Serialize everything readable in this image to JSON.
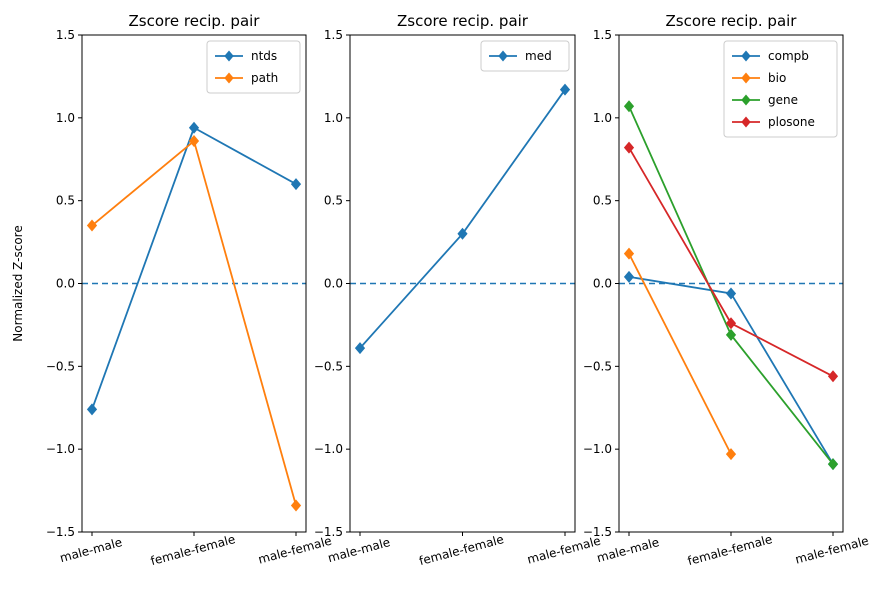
{
  "chart_data": [
    {
      "type": "line",
      "title": "Zscore recip. pair",
      "ylabel": "Normalized Z-score",
      "categories": [
        "male-male",
        "female-female",
        "male-female"
      ],
      "ylim": [
        -1.5,
        1.5
      ],
      "yticks": [
        "−1.5",
        "−1.0",
        "−0.5",
        "0.0",
        "0.5",
        "1.0",
        "1.5"
      ],
      "yticks_values": [
        -1.5,
        -1.0,
        -0.5,
        0.0,
        0.5,
        1.0,
        1.5
      ],
      "reference_line": 0,
      "legend_position": "top-right",
      "series": [
        {
          "name": "ntds",
          "color": "#1f77b4",
          "values": [
            -0.76,
            0.94,
            0.6
          ]
        },
        {
          "name": "path",
          "color": "#ff7f0e",
          "values": [
            0.35,
            0.86,
            -1.34
          ]
        }
      ]
    },
    {
      "type": "line",
      "title": "Zscore recip. pair",
      "categories": [
        "male-male",
        "female-female",
        "male-female"
      ],
      "ylim": [
        -1.5,
        1.5
      ],
      "yticks": [
        "−1.5",
        "−1.0",
        "−0.5",
        "0.0",
        "0.5",
        "1.0",
        "1.5"
      ],
      "yticks_values": [
        -1.5,
        -1.0,
        -0.5,
        0.0,
        0.5,
        1.0,
        1.5
      ],
      "reference_line": 0,
      "legend_position": "top-right",
      "series": [
        {
          "name": "med",
          "color": "#1f77b4",
          "values": [
            -0.39,
            0.3,
            1.17
          ]
        }
      ]
    },
    {
      "type": "line",
      "title": "Zscore recip. pair",
      "categories": [
        "male-male",
        "female-female",
        "male-female"
      ],
      "ylim": [
        -1.5,
        1.5
      ],
      "yticks": [
        "−1.5",
        "−1.0",
        "−0.5",
        "0.0",
        "0.5",
        "1.0",
        "1.5"
      ],
      "yticks_values": [
        -1.5,
        -1.0,
        -0.5,
        0.0,
        0.5,
        1.0,
        1.5
      ],
      "reference_line": 0,
      "legend_position": "top-right",
      "series": [
        {
          "name": "compb",
          "color": "#1f77b4",
          "values": [
            0.04,
            -0.06,
            -1.09
          ]
        },
        {
          "name": "bio",
          "color": "#ff7f0e",
          "values": [
            0.18,
            -1.03,
            null
          ]
        },
        {
          "name": "gene",
          "color": "#2ca02c",
          "values": [
            1.07,
            -0.31,
            -1.09
          ]
        },
        {
          "name": "plosone",
          "color": "#d62728",
          "values": [
            0.82,
            -0.24,
            -0.56
          ]
        }
      ]
    }
  ]
}
